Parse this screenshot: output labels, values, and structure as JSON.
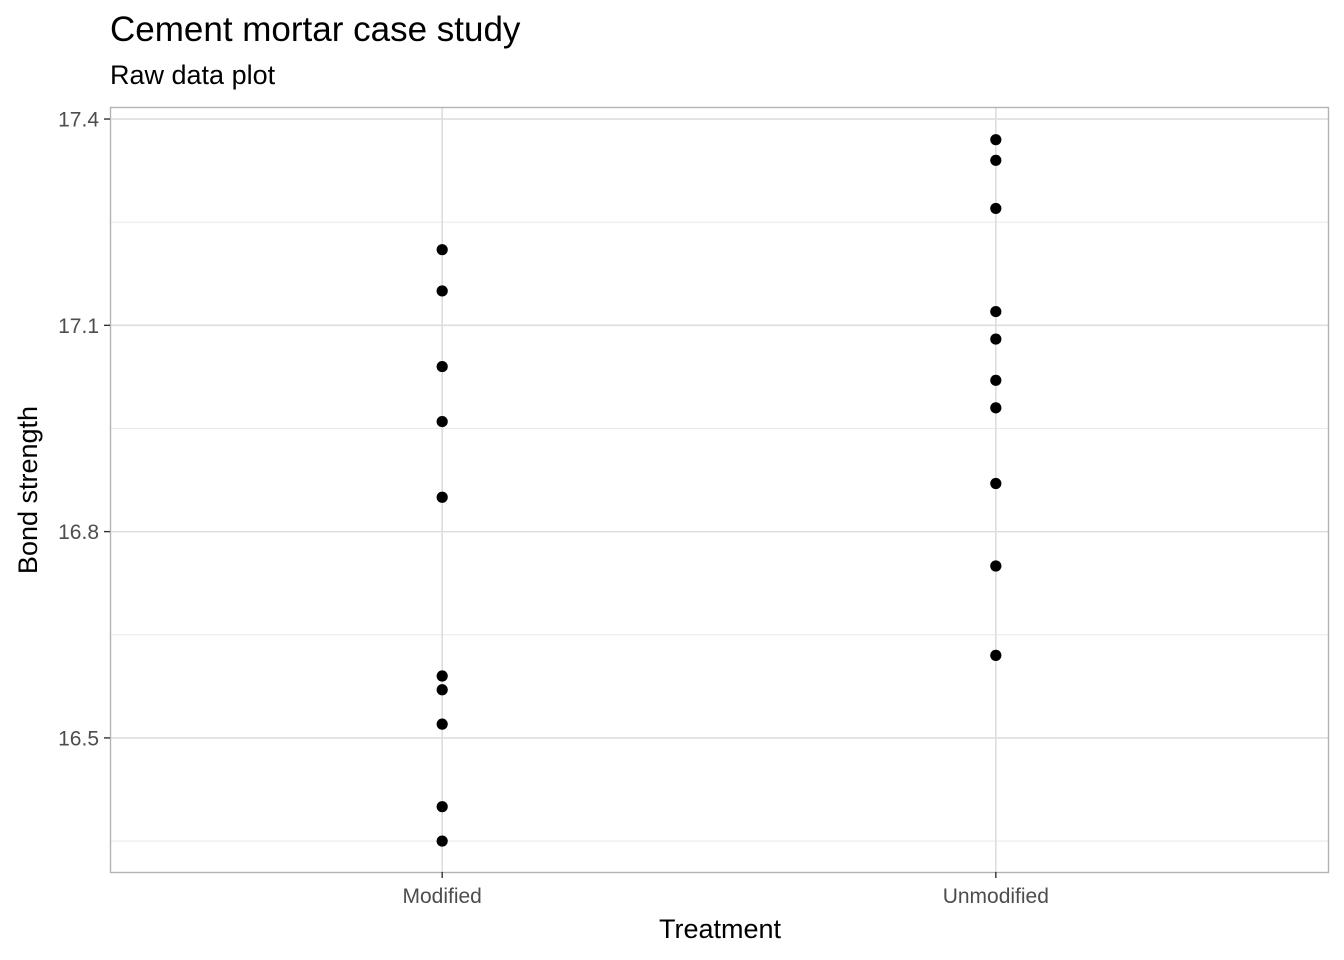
{
  "chart_data": {
    "type": "scatter",
    "title": "Cement mortar case study",
    "subtitle": "Raw data plot",
    "xlabel": "Treatment",
    "ylabel": "Bond strength",
    "categories": [
      "Modified",
      "Unmodified"
    ],
    "series": [
      {
        "category": "Modified",
        "values": [
          17.21,
          17.15,
          17.04,
          16.96,
          16.85,
          16.59,
          16.57,
          16.52,
          16.4,
          16.35
        ]
      },
      {
        "category": "Unmodified",
        "values": [
          17.37,
          17.34,
          17.27,
          17.12,
          17.08,
          17.02,
          16.98,
          16.87,
          16.75,
          16.62
        ]
      }
    ],
    "ylim": [
      16.305,
      17.4175
    ],
    "yticks": [
      16.5,
      16.8,
      17.1,
      17.4
    ],
    "grid": true,
    "point_color": "#000000",
    "grid_color": "#ebebeb",
    "panel_border_color": "#b3b3b3"
  }
}
